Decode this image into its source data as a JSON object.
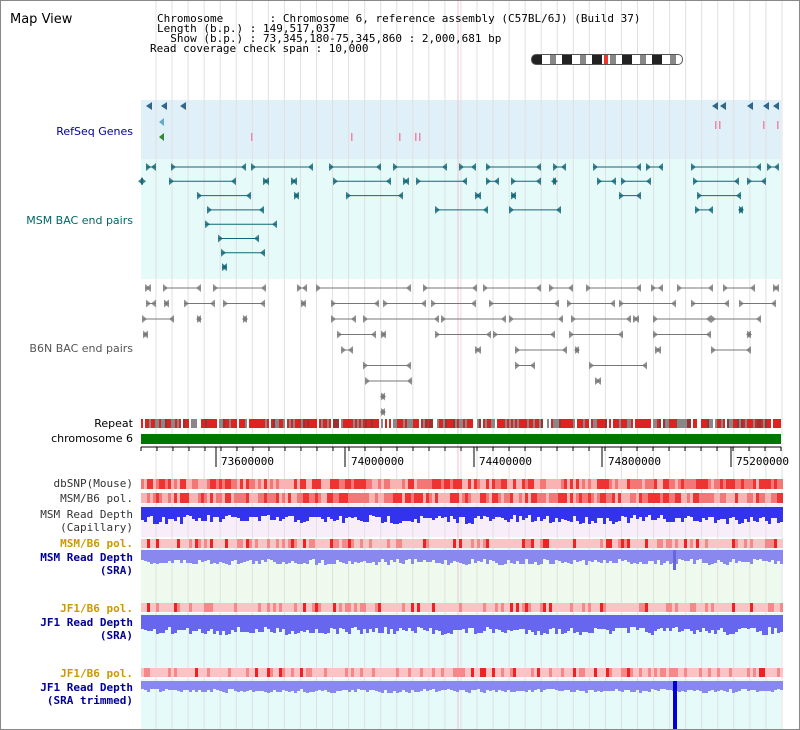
{
  "title": "Map View",
  "header": {
    "lines": [
      "Chromosome       : Chromosome 6, reference assembly (C57BL/6J) (Build 37)",
      "Length (b.p.) : 149,517,037",
      "  Show (b.p.) : 73,345,180-75,345,860 : 2,000,681 bp",
      "Read coverage check span : 10,000"
    ]
  },
  "tracks": {
    "refseq": "RefSeq Genes",
    "msm_bac": "MSM BAC end pairs",
    "b6n_bac": "B6N BAC end pairs",
    "repeat": "Repeat",
    "chromosome": "chromosome 6",
    "dbsnp": "dbSNP(Mouse)",
    "msm_b6_pol": "MSM/B6 pol.",
    "msm_read_depth_cap_1": "MSM Read Depth",
    "msm_read_depth_cap_2": "(Capillary)",
    "msm_b6_pol_sra": "MSM/B6 pol.",
    "msm_read_depth_sra_1": "MSM Read Depth",
    "msm_read_depth_sra_2": "(SRA)",
    "jf1_b6_pol_1": "JF1/B6 pol.",
    "jf1_read_depth_1": "JF1 Read Depth",
    "jf1_read_depth_1b": "(SRA)",
    "jf1_b6_pol_2": "JF1/B6 pol.",
    "jf1_read_depth_2": "JF1 Read Depth",
    "jf1_read_depth_2b": "(SRA trimmed)"
  },
  "axis": {
    "ticks": [
      "73600000",
      "74000000",
      "74400000",
      "74800000",
      "75200000"
    ]
  },
  "colors": {
    "refseq_bg": "#dff0f8",
    "bac_bg": "#e6fafa",
    "label_blue": "#000099",
    "label_teal": "#006666",
    "label_orange": "#cc9900",
    "chrom_green": "#007700",
    "depth_blue": "#3344ee",
    "depth_light": "#8888ee"
  }
}
